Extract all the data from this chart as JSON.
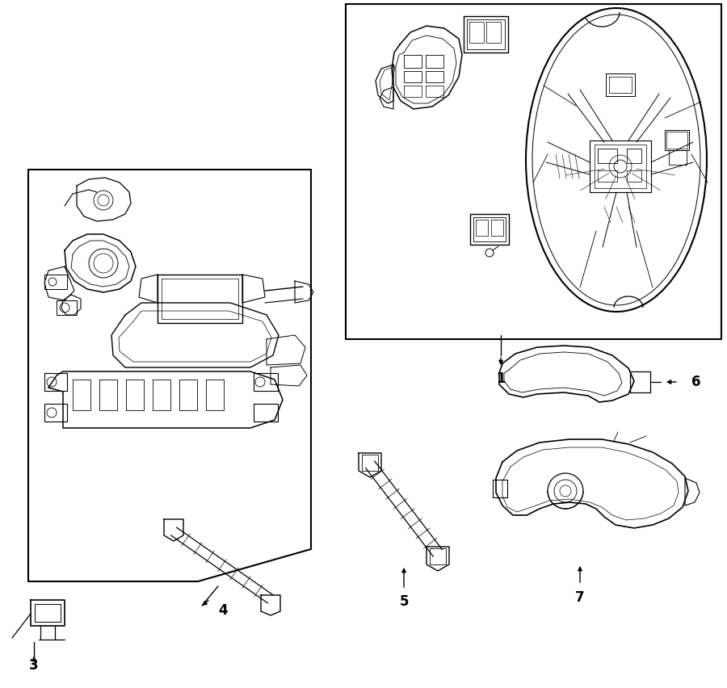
{
  "bg_color": "#ffffff",
  "lc": "#000000",
  "fig_w": 9.0,
  "fig_h": 8.52,
  "dpi": 100,
  "label_fs": 12
}
